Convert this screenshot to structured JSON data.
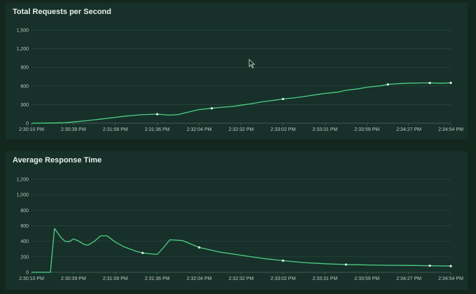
{
  "chart_data": [
    {
      "type": "line",
      "title": "Total Requests per Second",
      "xlabel": "",
      "ylabel": "",
      "ylim": [
        0,
        1500
      ],
      "yticks": [
        0,
        300,
        600,
        900,
        1200,
        1500
      ],
      "ytick_labels": [
        "0",
        "300",
        "600",
        "900",
        "1,200",
        "1,500"
      ],
      "xtick_labels": [
        "2:30:10 PM",
        "2:30:39 PM",
        "2:31:08 PM",
        "2:31:36 PM",
        "2:32:04 PM",
        "2:32:32 PM",
        "2:33:02 PM",
        "2:33:31 PM",
        "2:33:59 PM",
        "2:34:27 PM",
        "2:34:54 PM"
      ],
      "grid": true,
      "color": "#4ecf84",
      "series": [
        {
          "x": [
            0,
            0.05,
            0.08,
            0.1,
            0.13,
            0.15,
            0.17,
            0.2,
            0.22,
            0.25,
            0.27,
            0.3,
            0.33,
            0.35,
            0.38,
            0.4,
            0.43,
            0.45,
            0.48,
            0.5,
            0.53,
            0.55,
            0.58,
            0.6,
            0.63,
            0.65,
            0.68,
            0.7,
            0.73,
            0.75,
            0.78,
            0.8,
            0.83,
            0.85,
            0.88,
            0.9,
            0.93,
            0.95,
            0.98,
            1.0
          ],
          "y": [
            0,
            3,
            8,
            20,
            40,
            55,
            70,
            95,
            110,
            130,
            140,
            145,
            130,
            140,
            190,
            220,
            240,
            255,
            270,
            290,
            320,
            345,
            370,
            390,
            410,
            430,
            460,
            480,
            500,
            530,
            555,
            580,
            600,
            625,
            640,
            645,
            648,
            648,
            645,
            650
          ],
          "markers": [
            0.3,
            0.43,
            0.6,
            0.85,
            0.95,
            1.0
          ]
        }
      ]
    },
    {
      "type": "line",
      "title": "Average Response Time",
      "xlabel": "",
      "ylabel": "",
      "ylim": [
        0,
        1200
      ],
      "yticks": [
        0,
        200,
        400,
        600,
        800,
        1000,
        1200
      ],
      "ytick_labels": [
        "0",
        "200",
        "400",
        "600",
        "800",
        "1,000",
        "1,200"
      ],
      "xtick_labels": [
        "2:30:10 PM",
        "2:30:39 PM",
        "2:31:08 PM",
        "2:31:36 PM",
        "2:32:04 PM",
        "2:32:32 PM",
        "2:33:02 PM",
        "2:33:31 PM",
        "2:33:59 PM",
        "2:34:27 PM",
        "2:34:54 PM"
      ],
      "grid": true,
      "color": "#4ecf84",
      "series": [
        {
          "x": [
            0,
            0.03,
            0.045,
            0.055,
            0.07,
            0.08,
            0.09,
            0.1,
            0.11,
            0.125,
            0.135,
            0.15,
            0.165,
            0.18,
            0.2,
            0.22,
            0.25,
            0.265,
            0.28,
            0.3,
            0.315,
            0.33,
            0.36,
            0.4,
            0.45,
            0.5,
            0.55,
            0.6,
            0.65,
            0.7,
            0.75,
            0.8,
            0.85,
            0.9,
            0.95,
            1.0
          ],
          "y": [
            0,
            0,
            0,
            565,
            450,
            400,
            395,
            430,
            410,
            360,
            350,
            400,
            470,
            470,
            390,
            330,
            270,
            250,
            240,
            230,
            320,
            420,
            410,
            320,
            260,
            220,
            180,
            150,
            125,
            110,
            100,
            95,
            90,
            88,
            85,
            80
          ],
          "markers": [
            0.265,
            0.4,
            0.6,
            0.75,
            0.95,
            1.0
          ]
        }
      ]
    }
  ]
}
